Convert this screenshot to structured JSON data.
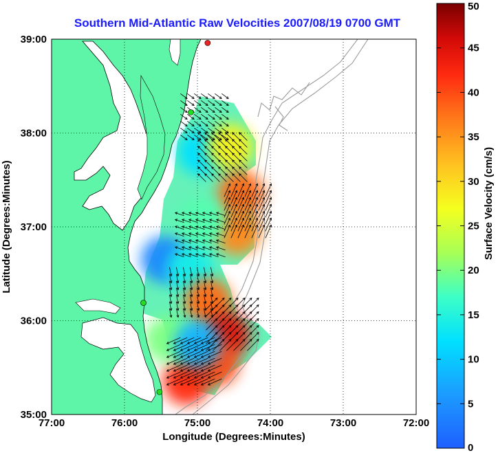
{
  "title": "Southern Mid-Atlantic Raw Velocities 2007/08/19 0700 GMT",
  "x_axis": {
    "label": "Longitude (Degrees:Minutes)",
    "range": [
      -77,
      -72
    ],
    "ticks": [
      {
        "value": -77,
        "label": "77:00"
      },
      {
        "value": -76,
        "label": "76:00"
      },
      {
        "value": -75,
        "label": "75:00"
      },
      {
        "value": -74,
        "label": "74:00"
      },
      {
        "value": -73,
        "label": "73:00"
      },
      {
        "value": -72,
        "label": "72:00"
      }
    ]
  },
  "y_axis": {
    "label": "Latitude (Degrees:Minutes)",
    "range": [
      35,
      39
    ],
    "ticks": [
      {
        "value": 39,
        "label": "39:00"
      },
      {
        "value": 38,
        "label": "38:00"
      },
      {
        "value": 37,
        "label": "37:00"
      },
      {
        "value": 36,
        "label": "36:00"
      },
      {
        "value": 35,
        "label": "35:00"
      }
    ]
  },
  "colorbar": {
    "label": "Surface Velocity (cm/s)",
    "range": [
      0,
      50
    ],
    "ticks": [
      {
        "value": 50,
        "label": "50"
      },
      {
        "value": 45,
        "label": "45"
      },
      {
        "value": 40,
        "label": "40"
      },
      {
        "value": 35,
        "label": "35"
      },
      {
        "value": 30,
        "label": "30"
      },
      {
        "value": 25,
        "label": "25"
      },
      {
        "value": 20,
        "label": "20"
      },
      {
        "value": 15,
        "label": "15"
      },
      {
        "value": 10,
        "label": "10"
      },
      {
        "value": 5,
        "label": "5"
      },
      {
        "value": 0,
        "label": "0"
      }
    ]
  },
  "colors": {
    "title": "#1a1aff",
    "land": "#5ff5a8",
    "grid": "#000000",
    "bathymetry": "#9a9a9a",
    "station": "#22dd22",
    "station_alert": "#ee2222"
  },
  "stations": [
    {
      "lon": -74.86,
      "lat": 38.96,
      "status": "offline"
    },
    {
      "lon": -75.09,
      "lat": 38.22,
      "status": "active"
    },
    {
      "lon": -75.74,
      "lat": 36.19,
      "status": "active"
    },
    {
      "lon": -75.52,
      "lat": 35.24,
      "status": "active"
    }
  ],
  "velocity_zones": [
    {
      "lon": -74.95,
      "lat": 37.8,
      "speed": 12
    },
    {
      "lon": -74.55,
      "lat": 37.85,
      "speed": 28
    },
    {
      "lon": -74.4,
      "lat": 37.35,
      "speed": 38
    },
    {
      "lon": -74.45,
      "lat": 36.95,
      "speed": 36
    },
    {
      "lon": -74.95,
      "lat": 37.05,
      "speed": 18
    },
    {
      "lon": -75.45,
      "lat": 36.65,
      "speed": 4
    },
    {
      "lon": -75.1,
      "lat": 36.55,
      "speed": 14
    },
    {
      "lon": -74.85,
      "lat": 36.2,
      "speed": 38
    },
    {
      "lon": -74.6,
      "lat": 35.85,
      "speed": 45
    },
    {
      "lon": -74.75,
      "lat": 35.55,
      "speed": 40
    },
    {
      "lon": -75.15,
      "lat": 35.35,
      "speed": 42
    },
    {
      "lon": -75.4,
      "lat": 35.8,
      "speed": 20
    },
    {
      "lon": -75.0,
      "lat": 35.75,
      "speed": 8
    }
  ],
  "currents": [
    {
      "lon": -74.95,
      "lat": 38.2,
      "u": 0.8,
      "v": -0.6,
      "speed": 12
    },
    {
      "lon": -74.6,
      "lat": 37.7,
      "u": -0.7,
      "v": 0.7,
      "speed": 25
    },
    {
      "lon": -74.35,
      "lat": 37.1,
      "u": 0.4,
      "v": 0.9,
      "speed": 38
    },
    {
      "lon": -74.9,
      "lat": 36.9,
      "u": -0.9,
      "v": 0.3,
      "speed": 18
    },
    {
      "lon": -75.1,
      "lat": 36.35,
      "u": 0.2,
      "v": -1.0,
      "speed": 14
    },
    {
      "lon": -74.6,
      "lat": 35.9,
      "u": 0.7,
      "v": 0.7,
      "speed": 45
    },
    {
      "lon": -74.95,
      "lat": 35.6,
      "u": -0.9,
      "v": -0.4,
      "speed": 40
    }
  ]
}
